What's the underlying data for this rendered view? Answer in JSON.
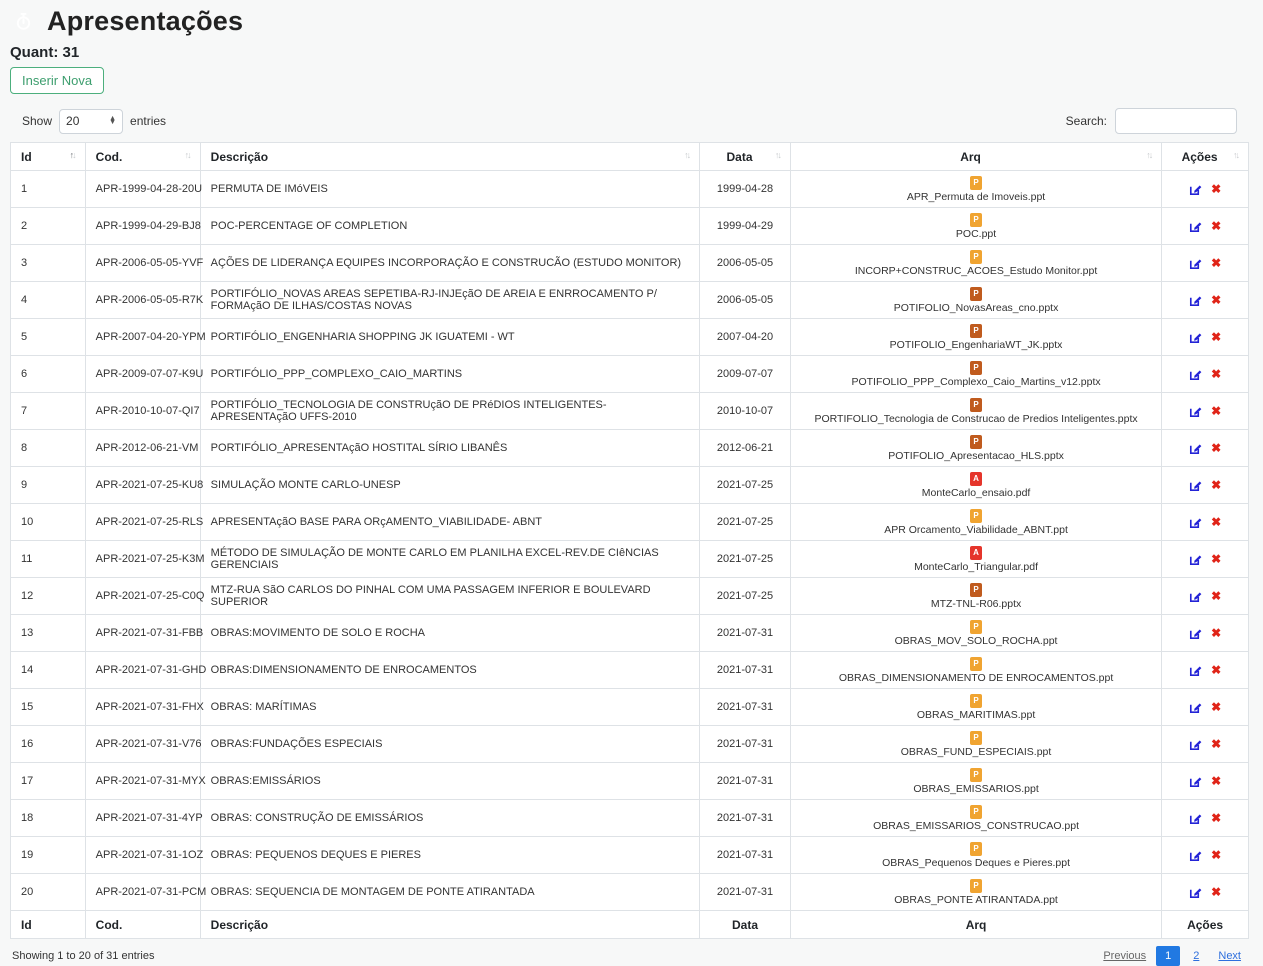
{
  "page": {
    "title": "Apresentações",
    "count_label": "Quant: 31",
    "insert_button_label": "Inserir Nova"
  },
  "controls": {
    "show_label": "Show",
    "page_length": "20",
    "entries_label": "entries",
    "search_label": "Search:",
    "search_value": ""
  },
  "colors": {
    "accent_teal": "#1a9191",
    "active_page_blue": "#2179e2",
    "edit_blue": "#2323d6",
    "delete_red": "#e02418",
    "ppt_icon": "#f0a431",
    "pptx_icon": "#c05b1e",
    "pdf_icon": "#e5352b"
  },
  "file_icons": {
    "ppt": {
      "color": "#f0a431",
      "letter": "P"
    },
    "pptx": {
      "color": "#c05b1e",
      "letter": "P"
    },
    "pdf": {
      "color": "#e5352b",
      "letter": "A"
    }
  },
  "action_icons": {
    "edit": "edit-pencil-square",
    "delete": "✖"
  },
  "table": {
    "headers": [
      {
        "label": "Id",
        "align": "left",
        "sort": "asc"
      },
      {
        "label": "Cod.",
        "align": "left",
        "sort": "none"
      },
      {
        "label": "Descrição",
        "align": "left",
        "sort": "none"
      },
      {
        "label": "Data",
        "align": "center",
        "sort": "none"
      },
      {
        "label": "Arq",
        "align": "center",
        "sort": "none"
      },
      {
        "label": "Ações",
        "align": "center",
        "sort": "none"
      }
    ],
    "rows": [
      {
        "id": "1",
        "cod": "APR-1999-04-28-20U",
        "descricao": "PERMUTA DE IMóVEIS",
        "data": "1999-04-28",
        "arq": "APR_Permuta de Imoveis.ppt",
        "tipo": "ppt"
      },
      {
        "id": "2",
        "cod": "APR-1999-04-29-BJ8",
        "descricao": "POC-PERCENTAGE OF COMPLETION",
        "data": "1999-04-29",
        "arq": "POC.ppt",
        "tipo": "ppt"
      },
      {
        "id": "3",
        "cod": "APR-2006-05-05-YVF",
        "descricao": "AÇÕES DE LIDERANÇA EQUIPES INCORPORAÇÃO E CONSTRUCÃO (ESTUDO MONITOR)",
        "data": "2006-05-05",
        "arq": "INCORP+CONSTRUC_ACOES_Estudo Monitor.ppt",
        "tipo": "ppt"
      },
      {
        "id": "4",
        "cod": "APR-2006-05-05-R7K",
        "descricao": "PORTIFÓLIO_NOVAS AREAS SEPETIBA-RJ-INJEçãO DE AREIA E ENRROCAMENTO P/ FORMAçãO DE ILHAS/COSTAS NOVAS",
        "data": "2006-05-05",
        "arq": "POTIFOLIO_NovasAreas_cno.pptx",
        "tipo": "pptx"
      },
      {
        "id": "5",
        "cod": "APR-2007-04-20-YPM",
        "descricao": "PORTIFÓLIO_ENGENHARIA SHOPPING JK IGUATEMI - WT",
        "data": "2007-04-20",
        "arq": "POTIFOLIO_EngenhariaWT_JK.pptx",
        "tipo": "pptx"
      },
      {
        "id": "6",
        "cod": "APR-2009-07-07-K9U",
        "descricao": "PORTIFÓLIO_PPP_COMPLEXO_CAIO_MARTINS",
        "data": "2009-07-07",
        "arq": "POTIFOLIO_PPP_Complexo_Caio_Martins_v12.pptx",
        "tipo": "pptx"
      },
      {
        "id": "7",
        "cod": "APR-2010-10-07-QI7",
        "descricao": "PORTIFÓLIO_TECNOLOGIA DE CONSTRUçãO DE PRéDIOS INTELIGENTES-APRESENTAçãO UFFS-2010",
        "data": "2010-10-07",
        "arq": "PORTIFOLIO_Tecnologia de Construcao de Predios Inteligentes.pptx",
        "tipo": "pptx"
      },
      {
        "id": "8",
        "cod": "APR-2012-06-21-VM",
        "descricao": "PORTIFÓLIO_APRESENTAçãO HOSTITAL SÍRIO LIBANÊS",
        "data": "2012-06-21",
        "arq": "POTIFOLIO_Apresentacao_HLS.pptx",
        "tipo": "pptx"
      },
      {
        "id": "9",
        "cod": "APR-2021-07-25-KU8",
        "descricao": "SIMULAÇÃO MONTE CARLO-UNESP",
        "data": "2021-07-25",
        "arq": "MonteCarlo_ensaio.pdf",
        "tipo": "pdf"
      },
      {
        "id": "10",
        "cod": "APR-2021-07-25-RLS",
        "descricao": "APRESENTAçãO BASE PARA ORçAMENTO_VIABILIDADE- ABNT",
        "data": "2021-07-25",
        "arq": "APR Orcamento_Viabilidade_ABNT.ppt",
        "tipo": "ppt"
      },
      {
        "id": "11",
        "cod": "APR-2021-07-25-K3M",
        "descricao": "MÉTODO DE SIMULAÇÃO DE MONTE CARLO EM PLANILHA EXCEL-REV.DE CIêNCIAS GERENCIAIS",
        "data": "2021-07-25",
        "arq": "MonteCarlo_Triangular.pdf",
        "tipo": "pdf"
      },
      {
        "id": "12",
        "cod": "APR-2021-07-25-C0Q",
        "descricao": "MTZ-RUA SãO CARLOS DO PINHAL COM UMA PASSAGEM INFERIOR E BOULEVARD SUPERIOR",
        "data": "2021-07-25",
        "arq": "MTZ-TNL-R06.pptx",
        "tipo": "pptx"
      },
      {
        "id": "13",
        "cod": "APR-2021-07-31-FBB",
        "descricao": "OBRAS:MOVIMENTO DE SOLO E ROCHA",
        "data": "2021-07-31",
        "arq": "OBRAS_MOV_SOLO_ROCHA.ppt",
        "tipo": "ppt"
      },
      {
        "id": "14",
        "cod": "APR-2021-07-31-GHD",
        "descricao": "OBRAS:DIMENSIONAMENTO DE ENROCAMENTOS",
        "data": "2021-07-31",
        "arq": "OBRAS_DIMENSIONAMENTO DE ENROCAMENTOS.ppt",
        "tipo": "ppt"
      },
      {
        "id": "15",
        "cod": "APR-2021-07-31-FHX",
        "descricao": "OBRAS: MARÍTIMAS",
        "data": "2021-07-31",
        "arq": "OBRAS_MARITIMAS.ppt",
        "tipo": "ppt"
      },
      {
        "id": "16",
        "cod": "APR-2021-07-31-V76",
        "descricao": "OBRAS:FUNDAÇÕES ESPECIAIS",
        "data": "2021-07-31",
        "arq": "OBRAS_FUND_ESPECIAIS.ppt",
        "tipo": "ppt"
      },
      {
        "id": "17",
        "cod": "APR-2021-07-31-MYX",
        "descricao": "OBRAS:EMISSÁRIOS",
        "data": "2021-07-31",
        "arq": "OBRAS_EMISSARIOS.ppt",
        "tipo": "ppt"
      },
      {
        "id": "18",
        "cod": "APR-2021-07-31-4YP",
        "descricao": "OBRAS: CONSTRUÇÃO DE EMISSÁRIOS",
        "data": "2021-07-31",
        "arq": "OBRAS_EMISSARIOS_CONSTRUCAO.ppt",
        "tipo": "ppt"
      },
      {
        "id": "19",
        "cod": "APR-2021-07-31-1OZ",
        "descricao": "OBRAS: PEQUENOS DEQUES E PIERES",
        "data": "2021-07-31",
        "arq": "OBRAS_Pequenos Deques e Pieres.ppt",
        "tipo": "ppt"
      },
      {
        "id": "20",
        "cod": "APR-2021-07-31-PCM",
        "descricao": "OBRAS: SEQUENCIA DE MONTAGEM DE PONTE ATIRANTADA",
        "data": "2021-07-31",
        "arq": "OBRAS_PONTE ATIRANTADA.ppt",
        "tipo": "ppt"
      }
    ]
  },
  "footer": {
    "info": "Showing 1 to 20 of 31 entries",
    "pagination": {
      "previous_label": "Previous",
      "pages": [
        "1",
        "2"
      ],
      "active_page": "1",
      "next_label": "Next"
    }
  }
}
